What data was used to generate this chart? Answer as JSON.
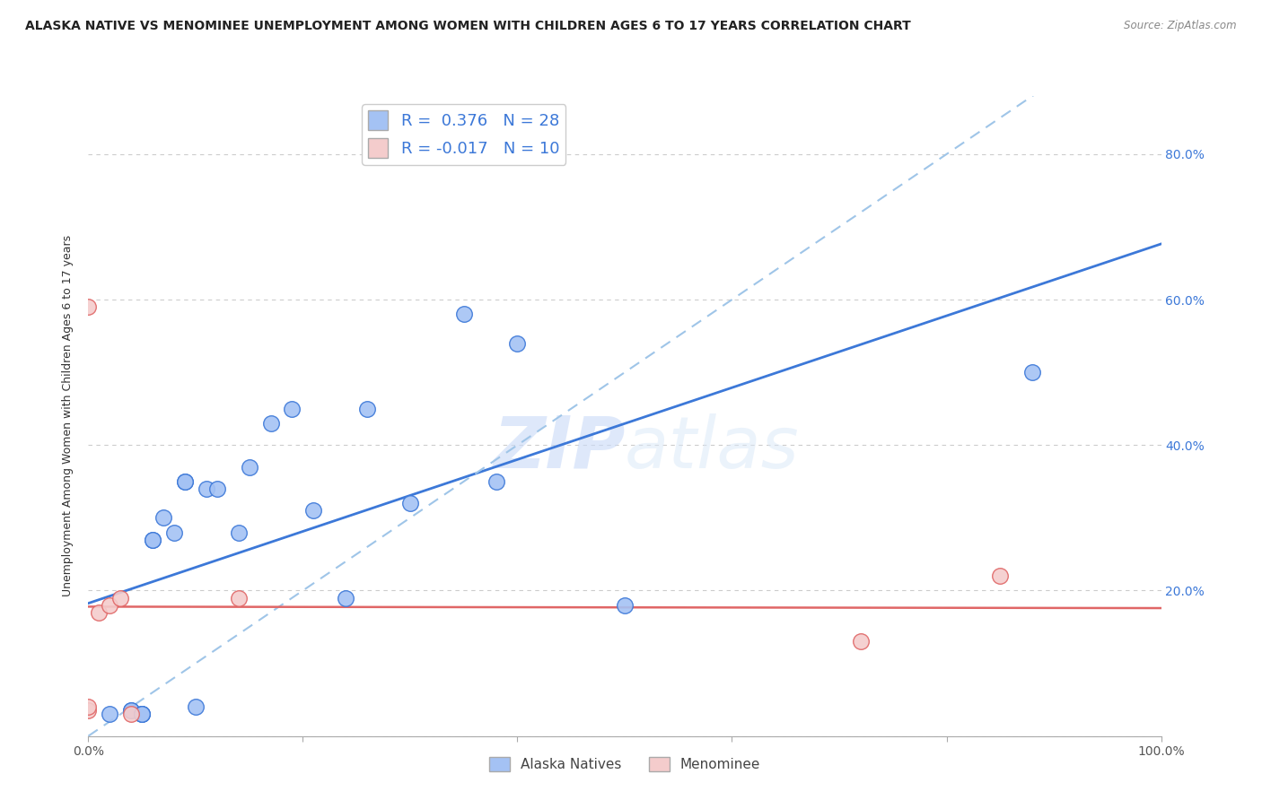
{
  "title": "ALASKA NATIVE VS MENOMINEE UNEMPLOYMENT AMONG WOMEN WITH CHILDREN AGES 6 TO 17 YEARS CORRELATION CHART",
  "source": "Source: ZipAtlas.com",
  "ylabel": "Unemployment Among Women with Children Ages 6 to 17 years",
  "xlim": [
    0.0,
    1.0
  ],
  "ylim": [
    0.0,
    0.88
  ],
  "xticks": [
    0.0,
    0.2,
    0.4,
    0.6,
    0.8,
    1.0
  ],
  "yticks": [
    0.0,
    0.2,
    0.4,
    0.6,
    0.8
  ],
  "xticklabels": [
    "0.0%",
    "",
    "",
    "",
    "",
    "100.0%"
  ],
  "yticklabels": [
    "",
    "",
    "",
    "",
    ""
  ],
  "right_yticklabels": [
    "20.0%",
    "40.0%",
    "60.0%",
    "80.0%"
  ],
  "right_yticks": [
    0.2,
    0.4,
    0.6,
    0.8
  ],
  "alaska_R": "0.376",
  "alaska_N": "28",
  "menominee_R": "-0.017",
  "menominee_N": "10",
  "alaska_color": "#a4c2f4",
  "menominee_color": "#f4cccc",
  "alaska_line_color": "#3c78d8",
  "menominee_line_color": "#e06666",
  "dashed_line_color": "#9fc5e8",
  "watermark_color": "#c9daf8",
  "background_color": "#ffffff",
  "grid_color": "#cccccc",
  "alaska_points_x": [
    0.02,
    0.04,
    0.04,
    0.05,
    0.05,
    0.05,
    0.06,
    0.06,
    0.07,
    0.08,
    0.09,
    0.09,
    0.1,
    0.11,
    0.12,
    0.14,
    0.15,
    0.17,
    0.19,
    0.21,
    0.24,
    0.26,
    0.3,
    0.35,
    0.38,
    0.4,
    0.5,
    0.88
  ],
  "alaska_points_y": [
    0.03,
    0.035,
    0.035,
    0.03,
    0.03,
    0.03,
    0.27,
    0.27,
    0.3,
    0.28,
    0.35,
    0.35,
    0.04,
    0.34,
    0.34,
    0.28,
    0.37,
    0.43,
    0.45,
    0.31,
    0.19,
    0.45,
    0.32,
    0.58,
    0.35,
    0.54,
    0.18,
    0.5
  ],
  "menominee_points_x": [
    0.0,
    0.0,
    0.0,
    0.01,
    0.02,
    0.03,
    0.04,
    0.14,
    0.72,
    0.85
  ],
  "menominee_points_y": [
    0.035,
    0.04,
    0.59,
    0.17,
    0.18,
    0.19,
    0.03,
    0.19,
    0.13,
    0.22
  ],
  "legend_text_color": "#3c78d8"
}
